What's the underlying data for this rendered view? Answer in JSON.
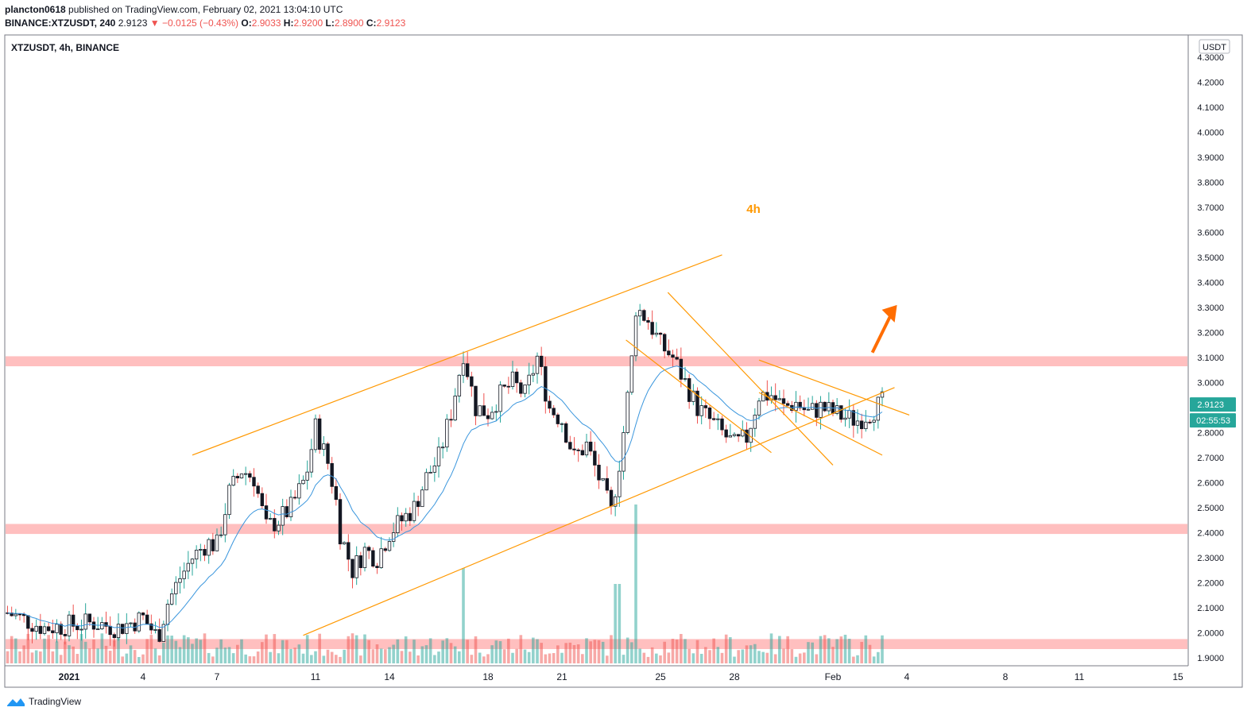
{
  "header": {
    "publisher": "plancton0618",
    "published_text": "published on TradingView.com, February 02, 2021 13:04:10 UTC",
    "symbol_line": "BINANCE:XTZUSDT, 240",
    "last": "2.9123",
    "change": "−0.0125 (−0.43%)",
    "o_label": "O:",
    "o": "2.9033",
    "h_label": "H:",
    "h": "2.9200",
    "l_label": "L:",
    "l": "2.8900",
    "c_label": "C:",
    "c": "2.9123"
  },
  "footer": {
    "brand": "TradingView"
  },
  "chart_data": {
    "type": "candlestick",
    "title": "XTZUSDT, 4h, BINANCE",
    "annotation": "4h",
    "currency": "USDT",
    "price_label": "2.9123",
    "countdown_label": "02:55:53",
    "y_ticks": [
      "4.3000",
      "4.2000",
      "4.1000",
      "4.0000",
      "3.9000",
      "3.8000",
      "3.7000",
      "3.6000",
      "3.5000",
      "3.4000",
      "3.3000",
      "3.2000",
      "3.1000",
      "3.0000",
      "2.9000",
      "2.8000",
      "2.7000",
      "2.6000",
      "2.5000",
      "2.4000",
      "2.3000",
      "2.2000",
      "2.1000",
      "2.0000",
      "1.9000"
    ],
    "ylim": [
      1.87,
      4.32
    ],
    "x_ticks": [
      "2021",
      "4",
      "7",
      "11",
      "14",
      "18",
      "21",
      "25",
      "28",
      "Feb",
      "4",
      "8",
      "11",
      "15"
    ],
    "support_resistance_zones": [
      [
        3.065,
        3.105
      ],
      [
        2.395,
        2.435
      ],
      [
        1.935,
        1.975
      ]
    ],
    "ascending_channel": {
      "upper": [
        [
          5,
          2.71
        ],
        [
          26.5,
          3.51
        ]
      ],
      "lower": [
        [
          9.5,
          1.99
        ],
        [
          33.5,
          2.98
        ]
      ]
    },
    "descending_channel": {
      "upper": [
        [
          24.3,
          3.36
        ],
        [
          31.0,
          2.67
        ]
      ],
      "lower": [
        [
          22.6,
          3.17
        ],
        [
          28.5,
          2.72
        ]
      ]
    },
    "triangle": {
      "upper": [
        [
          28.0,
          3.09
        ],
        [
          34.1,
          2.87
        ]
      ],
      "lower": [
        [
          28.0,
          2.96
        ],
        [
          33.0,
          2.71
        ]
      ]
    },
    "breakout_arrow": {
      "from": [
        32.6,
        3.12
      ],
      "to": [
        33.6,
        3.31
      ]
    },
    "volume_max_day_index": 23
  }
}
